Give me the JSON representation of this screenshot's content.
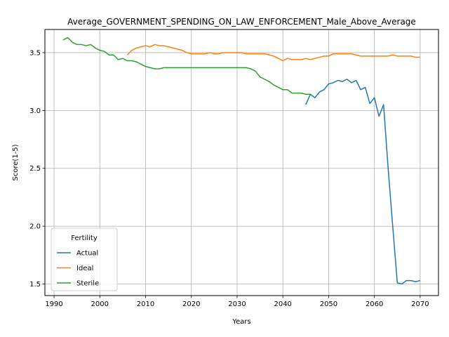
{
  "chart_data": {
    "type": "line",
    "title": "Average_GOVERNMENT_SPENDING_ON_LAW_ENFORCEMENT_Male_Above_Average",
    "xlabel": "Years",
    "ylabel": "Score(1-5)",
    "xlim": [
      1988,
      2074
    ],
    "ylim": [
      1.4,
      3.7
    ],
    "xticks": [
      "1990",
      "2000",
      "2010",
      "2020",
      "2030",
      "2040",
      "2050",
      "2060",
      "2070"
    ],
    "yticks": [
      "1.5",
      "2.0",
      "2.5",
      "3.0",
      "3.5"
    ],
    "grid": true,
    "legend": {
      "title": "Fertility",
      "position": "lower-left"
    },
    "series": [
      {
        "name": "Actual",
        "color": "#1f77b4",
        "x": [
          2045,
          2046,
          2047,
          2048,
          2049,
          2050,
          2051,
          2052,
          2053,
          2054,
          2055,
          2056,
          2057,
          2058,
          2059,
          2060,
          2061,
          2062,
          2063,
          2064,
          2065,
          2066,
          2067,
          2068,
          2069,
          2070
        ],
        "y": [
          3.05,
          3.14,
          3.11,
          3.16,
          3.18,
          3.23,
          3.24,
          3.26,
          3.25,
          3.27,
          3.24,
          3.26,
          3.18,
          3.2,
          3.06,
          3.11,
          2.95,
          3.05,
          2.5,
          2.0,
          1.51,
          1.5,
          1.53,
          1.53,
          1.52,
          1.53
        ]
      },
      {
        "name": "Ideal",
        "color": "#ff7f0e",
        "x": [
          2006,
          2007,
          2008,
          2009,
          2010,
          2011,
          2012,
          2013,
          2014,
          2015,
          2016,
          2017,
          2018,
          2019,
          2020,
          2021,
          2022,
          2023,
          2024,
          2025,
          2026,
          2027,
          2028,
          2029,
          2030,
          2031,
          2032,
          2033,
          2034,
          2035,
          2036,
          2037,
          2038,
          2039,
          2040,
          2041,
          2042,
          2043,
          2044,
          2045,
          2046,
          2047,
          2048,
          2049,
          2050,
          2051,
          2052,
          2053,
          2054,
          2055,
          2056,
          2057,
          2058,
          2059,
          2060,
          2061,
          2062,
          2063,
          2064,
          2065,
          2066,
          2067,
          2068,
          2069,
          2070
        ],
        "y": [
          3.48,
          3.52,
          3.54,
          3.55,
          3.56,
          3.55,
          3.57,
          3.56,
          3.56,
          3.55,
          3.54,
          3.53,
          3.52,
          3.5,
          3.49,
          3.49,
          3.49,
          3.49,
          3.5,
          3.49,
          3.49,
          3.5,
          3.5,
          3.5,
          3.5,
          3.5,
          3.49,
          3.49,
          3.49,
          3.49,
          3.49,
          3.48,
          3.47,
          3.45,
          3.43,
          3.45,
          3.44,
          3.44,
          3.44,
          3.45,
          3.44,
          3.45,
          3.46,
          3.47,
          3.47,
          3.49,
          3.49,
          3.49,
          3.49,
          3.49,
          3.48,
          3.47,
          3.47,
          3.47,
          3.47,
          3.47,
          3.47,
          3.47,
          3.48,
          3.47,
          3.47,
          3.47,
          3.47,
          3.46,
          3.46
        ]
      },
      {
        "name": "Sterile",
        "color": "#2ca02c",
        "x": [
          1992,
          1993,
          1994,
          1995,
          1996,
          1997,
          1998,
          1999,
          2000,
          2001,
          2002,
          2003,
          2004,
          2005,
          2006,
          2007,
          2008,
          2009,
          2010,
          2011,
          2012,
          2013,
          2014,
          2015,
          2016,
          2017,
          2018,
          2019,
          2020,
          2021,
          2022,
          2023,
          2024,
          2025,
          2026,
          2027,
          2028,
          2029,
          2030,
          2031,
          2032,
          2033,
          2034,
          2035,
          2036,
          2037,
          2038,
          2039,
          2040,
          2041,
          2042,
          2043,
          2044,
          2045,
          2046
        ],
        "y": [
          3.61,
          3.63,
          3.59,
          3.57,
          3.57,
          3.56,
          3.57,
          3.54,
          3.52,
          3.51,
          3.48,
          3.48,
          3.44,
          3.45,
          3.43,
          3.43,
          3.42,
          3.4,
          3.38,
          3.37,
          3.36,
          3.36,
          3.37,
          3.37,
          3.37,
          3.37,
          3.37,
          3.37,
          3.37,
          3.37,
          3.37,
          3.37,
          3.37,
          3.37,
          3.37,
          3.37,
          3.37,
          3.37,
          3.37,
          3.37,
          3.37,
          3.36,
          3.34,
          3.29,
          3.27,
          3.25,
          3.22,
          3.2,
          3.18,
          3.18,
          3.15,
          3.15,
          3.15,
          3.14,
          3.14
        ]
      }
    ]
  }
}
